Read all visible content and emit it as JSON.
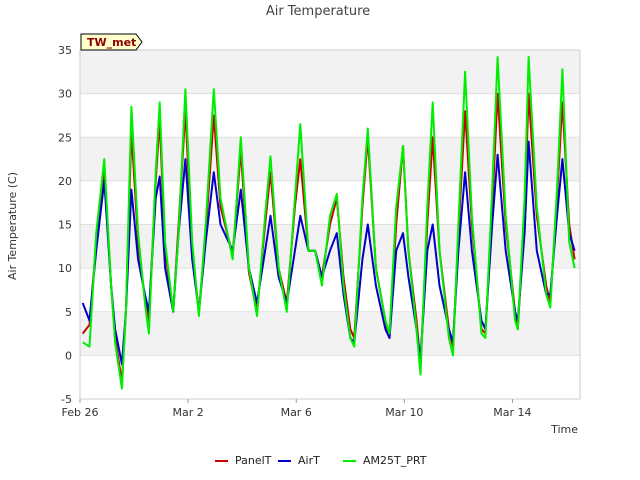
{
  "chart_data": {
    "type": "line",
    "title": "Air Temperature",
    "xlabel": "Time",
    "ylabel": "Air Temperature (C)",
    "tag_label": "TW_met",
    "ylim": [
      -5,
      35
    ],
    "yticks": [
      -5,
      0,
      5,
      10,
      15,
      20,
      25,
      30,
      35
    ],
    "xlim": [
      0,
      18.5
    ],
    "xticks": [
      {
        "value": 0,
        "label": "Feb 26"
      },
      {
        "value": 4,
        "label": "Mar 2"
      },
      {
        "value": 8,
        "label": "Mar 6"
      },
      {
        "value": 12,
        "label": "Mar 10"
      },
      {
        "value": 16,
        "label": "Mar 14"
      }
    ],
    "x_unit": "days since Feb 26",
    "grid": true,
    "banded_background": true,
    "legend_position": "bottom",
    "series": [
      {
        "name": "PanelT",
        "color": "#cc0000",
        "points": [
          [
            0.1,
            2.5
          ],
          [
            0.35,
            3.5
          ],
          [
            0.6,
            13
          ],
          [
            0.9,
            21.5
          ],
          [
            1.15,
            8
          ],
          [
            1.3,
            2
          ],
          [
            1.55,
            -3
          ],
          [
            1.7,
            5
          ],
          [
            1.9,
            25.8
          ],
          [
            2.15,
            13
          ],
          [
            2.4,
            6.5
          ],
          [
            2.55,
            4
          ],
          [
            2.8,
            20
          ],
          [
            2.95,
            27
          ],
          [
            3.15,
            12
          ],
          [
            3.45,
            5
          ],
          [
            3.65,
            15
          ],
          [
            3.9,
            28
          ],
          [
            4.15,
            12
          ],
          [
            4.4,
            5
          ],
          [
            4.65,
            14
          ],
          [
            4.95,
            27.5
          ],
          [
            5.2,
            17
          ],
          [
            5.65,
            11.5
          ],
          [
            5.95,
            23.5
          ],
          [
            6.25,
            9.5
          ],
          [
            6.55,
            5
          ],
          [
            6.85,
            15
          ],
          [
            7.05,
            21
          ],
          [
            7.35,
            10
          ],
          [
            7.65,
            6
          ],
          [
            7.95,
            17
          ],
          [
            8.15,
            22.5
          ],
          [
            8.45,
            12
          ],
          [
            8.7,
            12
          ],
          [
            8.95,
            9
          ],
          [
            9.25,
            15
          ],
          [
            9.5,
            18
          ],
          [
            9.75,
            9
          ],
          [
            10.0,
            3
          ],
          [
            10.15,
            2
          ],
          [
            10.45,
            17
          ],
          [
            10.65,
            25
          ],
          [
            10.95,
            10
          ],
          [
            11.3,
            4
          ],
          [
            11.45,
            2
          ],
          [
            11.7,
            15
          ],
          [
            11.95,
            24
          ],
          [
            12.15,
            12
          ],
          [
            12.45,
            4
          ],
          [
            12.6,
            -1
          ],
          [
            12.85,
            15
          ],
          [
            13.05,
            25
          ],
          [
            13.3,
            12
          ],
          [
            13.65,
            3
          ],
          [
            13.8,
            1
          ],
          [
            14.0,
            14
          ],
          [
            14.25,
            28
          ],
          [
            14.5,
            15
          ],
          [
            14.85,
            3
          ],
          [
            15.0,
            2.5
          ],
          [
            15.25,
            17
          ],
          [
            15.45,
            30
          ],
          [
            15.75,
            15
          ],
          [
            16.1,
            5
          ],
          [
            16.2,
            3
          ],
          [
            16.45,
            16
          ],
          [
            16.6,
            30
          ],
          [
            16.9,
            16
          ],
          [
            17.25,
            8
          ],
          [
            17.4,
            6
          ],
          [
            17.65,
            18
          ],
          [
            17.85,
            29
          ],
          [
            18.1,
            15
          ],
          [
            18.3,
            11
          ]
        ]
      },
      {
        "name": "AirT",
        "color": "#0000cc",
        "points": [
          [
            0.1,
            6
          ],
          [
            0.35,
            4
          ],
          [
            0.6,
            12
          ],
          [
            0.9,
            20
          ],
          [
            1.15,
            8
          ],
          [
            1.3,
            3
          ],
          [
            1.55,
            -1
          ],
          [
            1.7,
            5
          ],
          [
            1.9,
            19
          ],
          [
            2.15,
            11
          ],
          [
            2.4,
            7
          ],
          [
            2.55,
            5
          ],
          [
            2.8,
            18
          ],
          [
            2.95,
            20.5
          ],
          [
            3.15,
            10
          ],
          [
            3.45,
            5
          ],
          [
            3.65,
            14
          ],
          [
            3.9,
            22.5
          ],
          [
            4.15,
            11
          ],
          [
            4.4,
            5
          ],
          [
            4.65,
            13
          ],
          [
            4.95,
            21
          ],
          [
            5.2,
            15
          ],
          [
            5.65,
            12
          ],
          [
            5.95,
            19
          ],
          [
            6.25,
            10
          ],
          [
            6.55,
            6
          ],
          [
            6.85,
            12
          ],
          [
            7.05,
            16
          ],
          [
            7.35,
            9
          ],
          [
            7.65,
            6
          ],
          [
            7.95,
            12
          ],
          [
            8.15,
            16
          ],
          [
            8.45,
            12
          ],
          [
            8.7,
            12
          ],
          [
            8.95,
            9
          ],
          [
            9.25,
            12
          ],
          [
            9.5,
            14
          ],
          [
            9.75,
            7
          ],
          [
            10.0,
            2
          ],
          [
            10.15,
            1.5
          ],
          [
            10.45,
            11
          ],
          [
            10.65,
            15
          ],
          [
            10.95,
            8
          ],
          [
            11.3,
            3
          ],
          [
            11.45,
            2
          ],
          [
            11.7,
            12
          ],
          [
            11.95,
            14
          ],
          [
            12.15,
            9
          ],
          [
            12.45,
            3
          ],
          [
            12.6,
            -0.5
          ],
          [
            12.85,
            12
          ],
          [
            13.05,
            15
          ],
          [
            13.3,
            8
          ],
          [
            13.65,
            3
          ],
          [
            13.8,
            1.5
          ],
          [
            14.0,
            12
          ],
          [
            14.25,
            21
          ],
          [
            14.5,
            12
          ],
          [
            14.85,
            4
          ],
          [
            15.0,
            3
          ],
          [
            15.25,
            15
          ],
          [
            15.45,
            23
          ],
          [
            15.75,
            12
          ],
          [
            16.1,
            5
          ],
          [
            16.2,
            4
          ],
          [
            16.45,
            14
          ],
          [
            16.6,
            24.5
          ],
          [
            16.9,
            12
          ],
          [
            17.25,
            7
          ],
          [
            17.4,
            7
          ],
          [
            17.65,
            16
          ],
          [
            17.85,
            22.5
          ],
          [
            18.1,
            14
          ],
          [
            18.3,
            12
          ]
        ]
      },
      {
        "name": "AM25T_PRT",
        "color": "#00ee00",
        "points": [
          [
            0.1,
            1.5
          ],
          [
            0.35,
            1
          ],
          [
            0.6,
            14
          ],
          [
            0.9,
            22.5
          ],
          [
            1.15,
            8
          ],
          [
            1.3,
            1.5
          ],
          [
            1.55,
            -3.8
          ],
          [
            1.7,
            5
          ],
          [
            1.9,
            28.5
          ],
          [
            2.15,
            14
          ],
          [
            2.4,
            6
          ],
          [
            2.55,
            2.5
          ],
          [
            2.8,
            21
          ],
          [
            2.95,
            29
          ],
          [
            3.15,
            13
          ],
          [
            3.45,
            5
          ],
          [
            3.65,
            14
          ],
          [
            3.9,
            30.5
          ],
          [
            4.15,
            13
          ],
          [
            4.4,
            4.5
          ],
          [
            4.65,
            15
          ],
          [
            4.95,
            30.5
          ],
          [
            5.2,
            18
          ],
          [
            5.65,
            11
          ],
          [
            5.95,
            25
          ],
          [
            6.25,
            10
          ],
          [
            6.55,
            4.5
          ],
          [
            6.85,
            16
          ],
          [
            7.05,
            22.8
          ],
          [
            7.35,
            10
          ],
          [
            7.65,
            5
          ],
          [
            7.95,
            18
          ],
          [
            8.15,
            26.5
          ],
          [
            8.45,
            12
          ],
          [
            8.7,
            12
          ],
          [
            8.95,
            8
          ],
          [
            9.25,
            16
          ],
          [
            9.5,
            18.5
          ],
          [
            9.75,
            8
          ],
          [
            10.0,
            2
          ],
          [
            10.15,
            1
          ],
          [
            10.45,
            18
          ],
          [
            10.65,
            26
          ],
          [
            10.95,
            10
          ],
          [
            11.3,
            4
          ],
          [
            11.45,
            2.5
          ],
          [
            11.7,
            17
          ],
          [
            11.95,
            24
          ],
          [
            12.15,
            12
          ],
          [
            12.45,
            3
          ],
          [
            12.6,
            -2.2
          ],
          [
            12.85,
            17
          ],
          [
            13.05,
            29
          ],
          [
            13.3,
            12
          ],
          [
            13.65,
            2
          ],
          [
            13.8,
            0
          ],
          [
            14.0,
            15
          ],
          [
            14.25,
            32.5
          ],
          [
            14.5,
            16
          ],
          [
            14.85,
            2.5
          ],
          [
            15.0,
            2
          ],
          [
            15.25,
            19
          ],
          [
            15.45,
            34.2
          ],
          [
            15.75,
            16
          ],
          [
            16.1,
            4
          ],
          [
            16.2,
            3
          ],
          [
            16.45,
            18
          ],
          [
            16.6,
            34.2
          ],
          [
            16.9,
            17
          ],
          [
            17.25,
            7
          ],
          [
            17.4,
            5.5
          ],
          [
            17.65,
            19
          ],
          [
            17.85,
            32.8
          ],
          [
            18.1,
            13
          ],
          [
            18.3,
            10
          ]
        ]
      }
    ]
  }
}
